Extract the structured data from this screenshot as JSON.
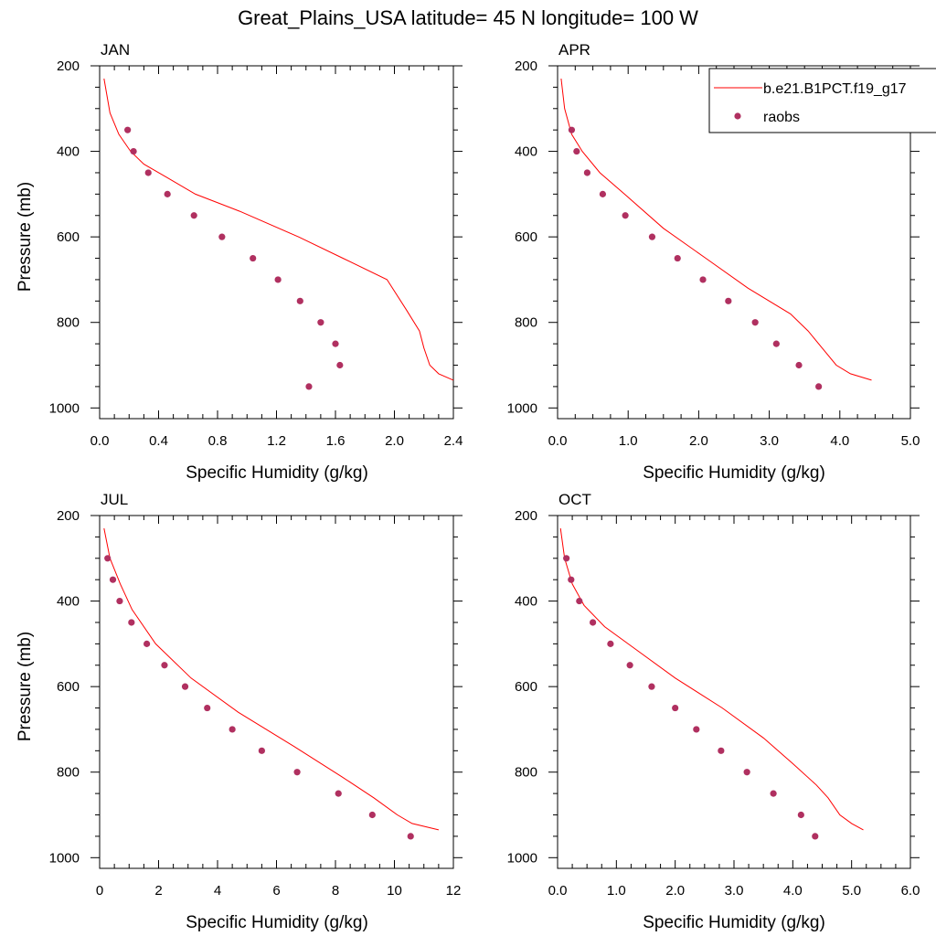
{
  "figure": {
    "title": "Great_Plains_USA  latitude= 45 N longitude= 100 W"
  },
  "legend": {
    "model_label": "b.e21.B1PCT.f19_g17",
    "obs_label": "raobs"
  },
  "colors": {
    "model_line": "#ff0000",
    "obs_marker": "#b03060"
  },
  "chart_data": [
    {
      "type": "line",
      "title": "JAN",
      "xlabel": "Specific Humidity (g/kg)",
      "ylabel": "Pressure (mb)",
      "xlim": [
        0,
        2.4
      ],
      "ylim": [
        200,
        1025
      ],
      "y_inverted": true,
      "x_ticks": [
        "0.0",
        "0.4",
        "0.8",
        "1.2",
        "1.6",
        "2.0",
        "2.4"
      ],
      "y_ticks": [
        "200",
        "400",
        "600",
        "800",
        "1000"
      ],
      "series": [
        {
          "name": "b.e21.B1PCT.f19_g17",
          "kind": "line",
          "x": [
            0.03,
            0.07,
            0.13,
            0.21,
            0.3,
            0.45,
            0.65,
            0.95,
            1.35,
            1.65,
            1.95,
            2.08,
            2.17,
            2.2,
            2.24,
            2.3,
            2.4
          ],
          "y": [
            230,
            310,
            360,
            400,
            430,
            460,
            500,
            540,
            600,
            650,
            700,
            770,
            820,
            860,
            900,
            920,
            935
          ]
        },
        {
          "name": "raobs",
          "kind": "scatter",
          "x": [
            0.19,
            0.23,
            0.33,
            0.46,
            0.64,
            0.83,
            1.04,
            1.21,
            1.36,
            1.5,
            1.6,
            1.63,
            1.42
          ],
          "y": [
            350,
            400,
            450,
            500,
            550,
            600,
            650,
            700,
            750,
            800,
            850,
            900,
            950
          ]
        }
      ]
    },
    {
      "type": "line",
      "title": "APR",
      "xlabel": "Specific Humidity (g/kg)",
      "ylabel": "",
      "xlim": [
        0,
        5.0
      ],
      "ylim": [
        200,
        1025
      ],
      "y_inverted": true,
      "x_ticks": [
        "0.0",
        "1.0",
        "2.0",
        "3.0",
        "4.0",
        "5.0"
      ],
      "y_ticks": [
        "200",
        "400",
        "600",
        "800",
        "1000"
      ],
      "series": [
        {
          "name": "b.e21.B1PCT.f19_g17",
          "kind": "line",
          "x": [
            0.05,
            0.1,
            0.2,
            0.35,
            0.6,
            0.95,
            1.5,
            2.1,
            2.7,
            3.3,
            3.55,
            3.75,
            3.95,
            4.15,
            4.45
          ],
          "y": [
            230,
            300,
            360,
            400,
            450,
            500,
            580,
            650,
            720,
            780,
            820,
            860,
            900,
            920,
            935
          ]
        },
        {
          "name": "raobs",
          "kind": "scatter",
          "x": [
            0.2,
            0.27,
            0.42,
            0.64,
            0.96,
            1.34,
            1.7,
            2.06,
            2.42,
            2.8,
            3.1,
            3.42,
            3.7
          ],
          "y": [
            350,
            400,
            450,
            500,
            550,
            600,
            650,
            700,
            750,
            800,
            850,
            900,
            950
          ]
        }
      ]
    },
    {
      "type": "line",
      "title": "JUL",
      "xlabel": "Specific Humidity (g/kg)",
      "ylabel": "Pressure (mb)",
      "xlim": [
        0,
        12
      ],
      "ylim": [
        200,
        1025
      ],
      "y_inverted": true,
      "x_ticks": [
        "0",
        "2",
        "4",
        "6",
        "8",
        "10",
        "12"
      ],
      "y_ticks": [
        "200",
        "400",
        "600",
        "800",
        "1000"
      ],
      "series": [
        {
          "name": "b.e21.B1PCT.f19_g17",
          "kind": "line",
          "x": [
            0.15,
            0.35,
            0.7,
            1.1,
            1.9,
            3.1,
            4.7,
            6.6,
            8.2,
            9.3,
            10.1,
            10.6,
            11.5
          ],
          "y": [
            230,
            300,
            360,
            420,
            500,
            580,
            660,
            740,
            810,
            860,
            900,
            920,
            935
          ]
        },
        {
          "name": "raobs",
          "kind": "scatter",
          "x": [
            0.27,
            0.45,
            0.68,
            1.08,
            1.6,
            2.2,
            2.9,
            3.65,
            4.5,
            5.5,
            6.7,
            8.1,
            9.25,
            10.55
          ],
          "y": [
            300,
            350,
            400,
            450,
            500,
            550,
            600,
            650,
            700,
            750,
            800,
            850,
            900,
            950
          ]
        }
      ]
    },
    {
      "type": "line",
      "title": "OCT",
      "xlabel": "Specific Humidity (g/kg)",
      "ylabel": "",
      "xlim": [
        0,
        6.0
      ],
      "ylim": [
        200,
        1025
      ],
      "y_inverted": true,
      "x_ticks": [
        "0.0",
        "1.0",
        "2.0",
        "3.0",
        "4.0",
        "5.0",
        "6.0"
      ],
      "y_ticks": [
        "200",
        "400",
        "600",
        "800",
        "1000"
      ],
      "series": [
        {
          "name": "b.e21.B1PCT.f19_g17",
          "kind": "line",
          "x": [
            0.05,
            0.12,
            0.25,
            0.45,
            0.8,
            1.3,
            2.0,
            2.8,
            3.5,
            4.0,
            4.4,
            4.6,
            4.8,
            5.0,
            5.2
          ],
          "y": [
            230,
            300,
            360,
            410,
            460,
            510,
            580,
            650,
            720,
            780,
            830,
            860,
            900,
            920,
            935
          ]
        },
        {
          "name": "raobs",
          "kind": "scatter",
          "x": [
            0.15,
            0.23,
            0.37,
            0.6,
            0.9,
            1.23,
            1.6,
            2.0,
            2.36,
            2.78,
            3.22,
            3.67,
            4.14,
            4.38
          ],
          "y": [
            300,
            350,
            400,
            450,
            500,
            550,
            600,
            650,
            700,
            750,
            800,
            850,
            900,
            950
          ]
        }
      ]
    }
  ]
}
